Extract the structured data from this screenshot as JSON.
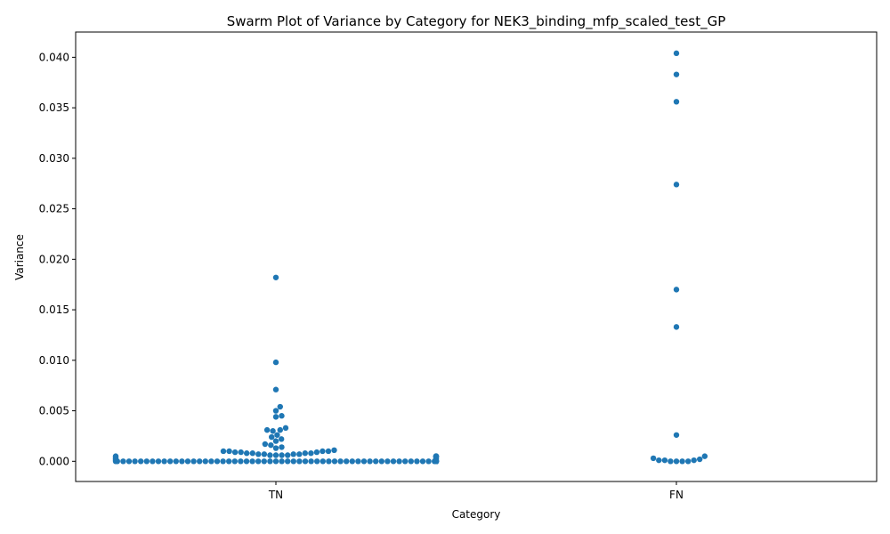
{
  "chart_data": {
    "type": "scatter",
    "subtype": "swarm",
    "title": "Swarm Plot of Variance by Category for NEK3_binding_mfp_scaled_test_GP",
    "xlabel": "Category",
    "ylabel": "Variance",
    "categories": [
      "TN",
      "FN"
    ],
    "ylim": [
      -0.002,
      0.0425
    ],
    "yticks": [
      0.0,
      0.005,
      0.01,
      0.015,
      0.02,
      0.025,
      0.03,
      0.035,
      0.04
    ],
    "ytick_labels": [
      "0.000",
      "0.005",
      "0.010",
      "0.015",
      "0.020",
      "0.025",
      "0.030",
      "0.035",
      "0.040"
    ],
    "grid": false,
    "legend": "none",
    "color": "#1f77b4",
    "series": [
      {
        "category": "TN",
        "values": [
          0.0182,
          0.0098,
          0.0071,
          0.0054,
          0.005,
          0.0045,
          0.0044,
          0.0033,
          0.0031,
          0.0031,
          0.003,
          0.0026,
          0.0024,
          0.0022,
          0.002,
          0.0017,
          0.0016,
          0.0014,
          0.0013,
          0.0011,
          0.001,
          0.001,
          0.001,
          0.001,
          0.0009,
          0.0009,
          0.0009,
          0.0008,
          0.0008,
          0.0008,
          0.0008,
          0.0007,
          0.0007,
          0.0007,
          0.0007,
          0.0006,
          0.0006,
          0.0006,
          0.0006,
          0.0005,
          0.0005,
          0.0005,
          0.0005,
          0.0005,
          0.0005,
          0.0004,
          0.0004,
          0.0004,
          0.0003,
          0.0003,
          0.0002,
          0.0002,
          0.0001,
          0.0001,
          0.0,
          0.0,
          0.0,
          0.0,
          0.0,
          0.0,
          0.0,
          0.0,
          0.0,
          0.0,
          0.0,
          0.0,
          0.0,
          0.0,
          0.0,
          0.0,
          0.0,
          0.0,
          0.0,
          0.0,
          0.0,
          0.0,
          0.0,
          0.0,
          0.0,
          0.0,
          0.0,
          0.0,
          0.0,
          0.0,
          0.0,
          0.0,
          0.0,
          0.0,
          0.0,
          0.0,
          0.0,
          0.0,
          0.0,
          0.0,
          0.0,
          0.0,
          0.0,
          0.0,
          0.0,
          0.0,
          0.0,
          0.0,
          0.0,
          0.0,
          0.0,
          0.0,
          0.0,
          0.0,
          0.0,
          0.0,
          0.0,
          0.0,
          0.0,
          0.0,
          0.0,
          0.0,
          0.0,
          0.0,
          0.0,
          0.0,
          0.0,
          0.0,
          0.0,
          0.0,
          0.0,
          0.0,
          0.0,
          0.0,
          0.0,
          0.0,
          0.0,
          0.0,
          0.0,
          0.0,
          0.0,
          0.0,
          0.0,
          0.0,
          0.0,
          0.0,
          0.0,
          0.0,
          0.0,
          0.0,
          0.0,
          0.0,
          0.0,
          0.0,
          0.0,
          0.0,
          0.0,
          0.0,
          0.0,
          0.0,
          0.0,
          0.0
        ]
      },
      {
        "category": "FN",
        "values": [
          0.0404,
          0.0383,
          0.0356,
          0.0274,
          0.017,
          0.0133,
          0.0026,
          0.0005,
          0.0003,
          0.0002,
          0.0001,
          0.0001,
          0.0001,
          0.0,
          0.0,
          0.0,
          0.0
        ]
      }
    ]
  }
}
